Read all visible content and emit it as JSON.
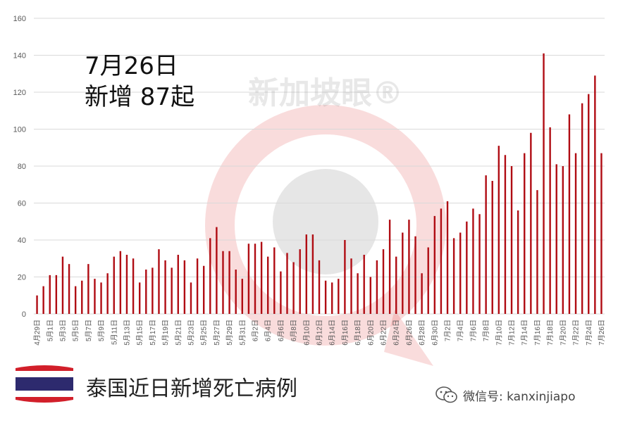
{
  "headline": {
    "line1": "7月26日",
    "line2": "新增 87起"
  },
  "footer": {
    "title": "泰国近日新增死亡病例",
    "wechat": "微信号: kanxinjiapo"
  },
  "watermark": {
    "text": "新加坡眼®"
  },
  "icons": {
    "flag": "thailand-flag-icon",
    "wechat": "wechat-icon",
    "logo": "kanxinjiapo-logo-icon"
  },
  "colors": {
    "bar": "#b00c13",
    "grid": "#d9d9d9",
    "flag_red": "#d21f2a",
    "flag_blue": "#2d2a6e"
  },
  "chart_data": {
    "type": "bar",
    "title": "",
    "xlabel": "",
    "ylabel": "",
    "ylim": [
      0,
      160
    ],
    "yticks": [
      0,
      20,
      40,
      60,
      80,
      100,
      120,
      140,
      160
    ],
    "grid": true,
    "categories": [
      "4月29日",
      "4月30日",
      "5月1日",
      "5月2日",
      "5月3日",
      "5月4日",
      "5月5日",
      "5月6日",
      "5月7日",
      "5月8日",
      "5月9日",
      "5月10日",
      "5月11日",
      "5月12日",
      "5月13日",
      "5月14日",
      "5月15日",
      "5月16日",
      "5月17日",
      "5月18日",
      "5月19日",
      "5月20日",
      "5月21日",
      "5月22日",
      "5月23日",
      "5月24日",
      "5月25日",
      "5月26日",
      "5月27日",
      "5月28日",
      "5月29日",
      "5月30日",
      "5月31日",
      "6月1日",
      "6月2日",
      "6月3日",
      "6月4日",
      "6月5日",
      "6月6日",
      "6月7日",
      "6月8日",
      "6月9日",
      "6月10日",
      "6月11日",
      "6月12日",
      "6月13日",
      "6月14日",
      "6月15日",
      "6月16日",
      "6月17日",
      "6月18日",
      "6月19日",
      "6月20日",
      "6月21日",
      "6月22日",
      "6月23日",
      "6月24日",
      "6月25日",
      "6月26日",
      "6月27日",
      "6月28日",
      "6月29日",
      "6月30日",
      "7月1日",
      "7月2日",
      "7月3日",
      "7月4日",
      "7月5日",
      "7月6日",
      "7月7日",
      "7月8日",
      "7月9日",
      "7月10日",
      "7月11日",
      "7月12日",
      "7月13日",
      "7月14日",
      "7月15日",
      "7月16日",
      "7月17日",
      "7月18日",
      "7月19日",
      "7月20日",
      "7月21日",
      "7月22日",
      "7月23日",
      "7月24日",
      "7月25日",
      "7月26日"
    ],
    "xtick_labels": [
      "4月29日",
      "5月1日",
      "5月3日",
      "5月5日",
      "5月7日",
      "5月9日",
      "5月11日",
      "5月13日",
      "5月15日",
      "5月17日",
      "5月19日",
      "5月21日",
      "5月23日",
      "5月25日",
      "5月27日",
      "5月29日",
      "5月31日",
      "6月2日",
      "6月4日",
      "6月6日",
      "6月8日",
      "6月10日",
      "6月12日",
      "6月14日",
      "6月16日",
      "6月18日",
      "6月20日",
      "6月22日",
      "6月24日",
      "6月26日",
      "6月28日",
      "6月30日",
      "7月2日",
      "7月4日",
      "7月6日",
      "7月8日",
      "7月10日",
      "7月12日",
      "7月14日",
      "7月16日",
      "7月18日",
      "7月20日",
      "7月22日",
      "7月24日",
      "7月26日"
    ],
    "values": [
      10,
      15,
      21,
      21,
      31,
      27,
      15,
      18,
      27,
      19,
      17,
      22,
      31,
      34,
      32,
      30,
      17,
      24,
      25,
      35,
      29,
      25,
      32,
      29,
      17,
      30,
      26,
      41,
      47,
      34,
      34,
      24,
      19,
      38,
      38,
      39,
      31,
      36,
      23,
      33,
      28,
      35,
      43,
      43,
      29,
      18,
      17,
      19,
      40,
      30,
      22,
      32,
      20,
      29,
      35,
      51,
      31,
      44,
      51,
      42,
      22,
      36,
      53,
      57,
      61,
      41,
      44,
      50,
      57,
      54,
      75,
      72,
      91,
      86,
      80,
      56,
      87,
      98,
      67,
      141,
      101,
      81,
      80,
      108,
      87,
      114,
      119,
      129,
      87
    ]
  }
}
